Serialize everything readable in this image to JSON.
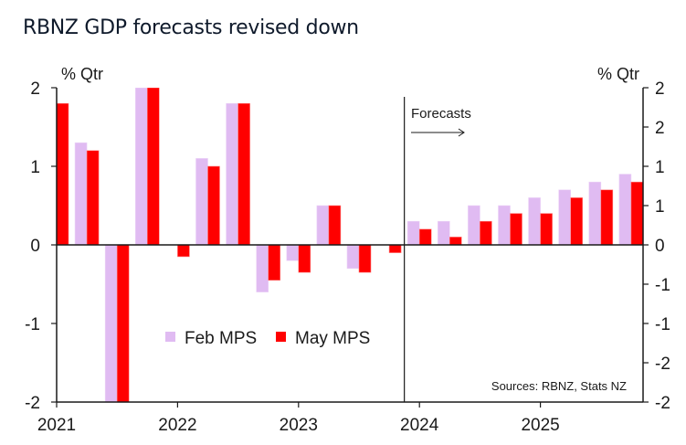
{
  "chart_data": {
    "type": "bar",
    "title": "RBNZ GDP forecasts revised down",
    "ylabel_left": "% Qtr",
    "ylabel_right": "% Qtr",
    "ylim": [
      -2,
      2
    ],
    "left_ticks": [
      2,
      1,
      0,
      -1,
      -2
    ],
    "left_tick_labels": [
      "2",
      "1",
      "0",
      "-1",
      "-2"
    ],
    "right_ticks": [
      2,
      1.5,
      1,
      0.5,
      0,
      -0.5,
      -1,
      -1.5,
      -2
    ],
    "right_tick_labels": [
      "2",
      "2",
      "1",
      "1",
      "0",
      "-1",
      "-1",
      "-2",
      "-2"
    ],
    "x_tick_labels": [
      "2021",
      "2022",
      "2023",
      "2024",
      "2025"
    ],
    "categories": [
      "Q1 2021",
      "Q2 2021",
      "Q3 2021",
      "Q4 2021",
      "Q1 2022",
      "Q2 2022",
      "Q3 2022",
      "Q4 2022",
      "Q1 2023",
      "Q2 2023",
      "Q3 2023",
      "Q4 2023",
      "Q1 2024",
      "Q2 2024",
      "Q3 2024",
      "Q4 2024",
      "Q1 2025",
      "Q2 2025",
      "Q3 2025",
      "Q4 2025"
    ],
    "series": [
      {
        "name": "Feb MPS",
        "color": "#e0bbf2",
        "values": [
          null,
          1.3,
          -2.5,
          2.0,
          0.0,
          1.1,
          1.8,
          -0.6,
          -0.2,
          0.5,
          -0.3,
          0.0,
          0.3,
          0.3,
          0.5,
          0.5,
          0.6,
          0.7,
          0.8,
          0.9
        ]
      },
      {
        "name": "May MPS",
        "color": "#ff0000",
        "values": [
          1.8,
          1.2,
          -2.5,
          2.0,
          -0.15,
          1.0,
          1.8,
          -0.45,
          -0.35,
          0.5,
          -0.35,
          -0.1,
          0.2,
          0.1,
          0.3,
          0.4,
          0.4,
          0.6,
          0.7,
          0.8
        ]
      }
    ],
    "forecast_start_after": "Q4 2023",
    "annotation": "Forecasts",
    "legend": [
      "Feb MPS",
      "May MPS"
    ],
    "legend_position": "lower-left-center",
    "source_note": "Sources: RBNZ, Stats NZ",
    "grid": false
  }
}
